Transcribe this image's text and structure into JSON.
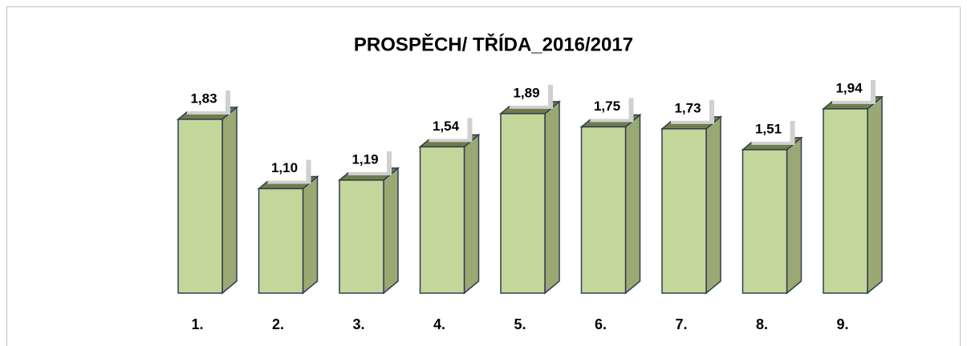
{
  "chart_data": {
    "type": "bar3d",
    "title": "PROSPĚCH/ TŘÍDA_2016/2017",
    "categories": [
      "1.",
      "2.",
      "3.",
      "4.",
      "5.",
      "6.",
      "7.",
      "8.",
      "9."
    ],
    "values": [
      1.83,
      1.1,
      1.19,
      1.54,
      1.89,
      1.75,
      1.73,
      1.51,
      1.94
    ],
    "value_labels": [
      "1,83",
      "1,10",
      "1,19",
      "1,54",
      "1,89",
      "1,75",
      "1,73",
      "1,51",
      "1,94"
    ],
    "color": "#c4d79b"
  }
}
